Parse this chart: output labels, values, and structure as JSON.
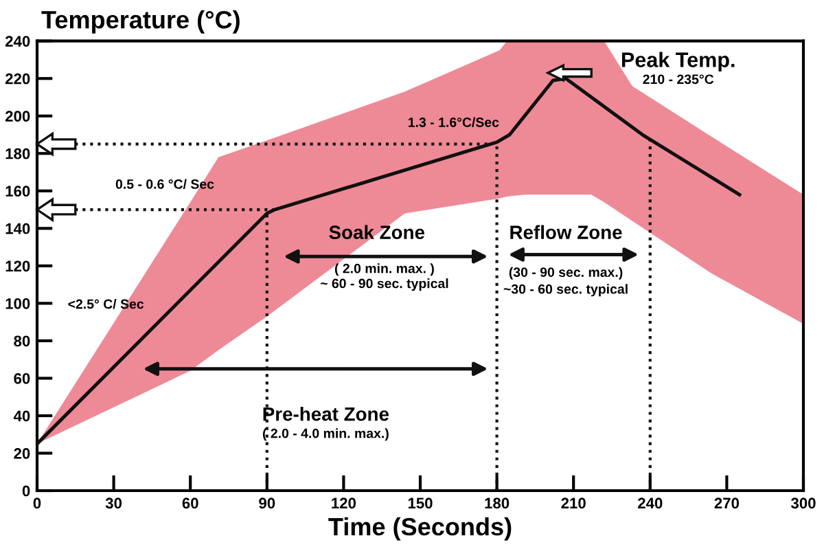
{
  "chart_data": {
    "type": "line",
    "ylabel": "Temperature (°C)",
    "xlabel": "Time (Seconds)",
    "xlim": [
      0,
      300
    ],
    "xticks": [
      0,
      30,
      60,
      90,
      120,
      150,
      180,
      210,
      240,
      270,
      300
    ],
    "ylim": [
      0,
      240
    ],
    "yticks": [
      0,
      20,
      40,
      60,
      80,
      100,
      120,
      140,
      160,
      180,
      200,
      220,
      240
    ],
    "grid": false,
    "marker": "none",
    "line_style": "solid",
    "series": [
      {
        "type": "area",
        "color": "#ee8a96",
        "x": [
          0,
          60,
          71,
          90,
          144,
          181,
          184,
          191,
          217,
          222,
          233,
          264,
          300
        ],
        "values": [
          null,
          null,
          null,
          null,
          null,
          null,
          null,
          null,
          null,
          null,
          null,
          null,
          null
        ],
        "upper": [
          25,
          154,
          178,
          187,
          213,
          235,
          240,
          240,
          240,
          240,
          216,
          189,
          158
        ],
        "lower": [
          25,
          64,
          75,
          93,
          148,
          156,
          157,
          158,
          158,
          154,
          144,
          116,
          89
        ]
      },
      {
        "color": "#111111",
        "x": [
          0,
          90,
          93,
          180,
          185,
          202,
          207,
          237,
          275
        ],
        "values": [
          25,
          148,
          150,
          186,
          190,
          219,
          220,
          190,
          158
        ]
      }
    ],
    "ref_lines": [
      {
        "axis": "y",
        "value": 150,
        "line_style": "dotted"
      },
      {
        "axis": "y",
        "value": 185,
        "line_style": "dotted"
      },
      {
        "axis": "x",
        "value": 90,
        "line_style": "dotted"
      },
      {
        "axis": "x",
        "value": 180,
        "line_style": "dotted"
      },
      {
        "axis": "x",
        "value": 240,
        "line_style": "dotted"
      }
    ],
    "annotations": [
      "<2.5° C/ Sec",
      "0.5 - 0.6 °C/ Sec",
      "1.3 - 1.6°C/Sec",
      "Peak Temp.",
      "210 - 235°C",
      "Soak Zone",
      "( 2.0 min. max. )",
      "~ 60 - 90 sec. typical",
      "Reflow Zone",
      "(30 - 90 sec. max.)",
      "~30 - 60 sec. typical",
      "Pre-heat Zone",
      "( 2.0 - 4.0 min. max.)"
    ]
  }
}
